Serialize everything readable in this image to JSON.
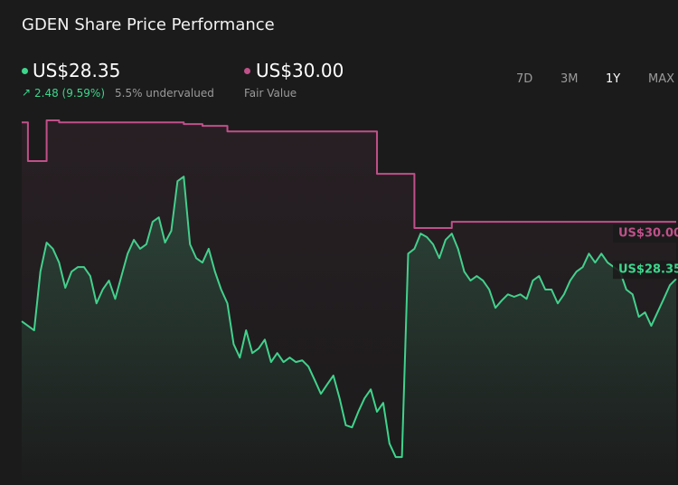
{
  "header": {
    "title": "GDEN Share Price Performance",
    "price": "US$28.35",
    "change": "2.48 (9.59%)",
    "valuation": "5.5% undervalued",
    "fair_value": "US$30.00",
    "fair_value_label": "Fair Value"
  },
  "ranges": [
    "7D",
    "3M",
    "1Y",
    "MAX"
  ],
  "active_range": 2,
  "chart_data": {
    "type": "line",
    "ylim": [
      22.38,
      33.28
    ],
    "grid": false,
    "series": [
      {
        "color": "#3dd68c",
        "values": [
          27.12,
          26.99,
          26.86,
          28.56,
          29.4,
          29.22,
          28.82,
          28.09,
          28.56,
          28.69,
          28.69,
          28.43,
          27.64,
          28.04,
          28.3,
          27.77,
          28.43,
          29.08,
          29.48,
          29.22,
          29.35,
          30.0,
          30.13,
          29.4,
          29.74,
          31.18,
          31.31,
          29.35,
          28.95,
          28.82,
          29.22,
          28.56,
          28.04,
          27.64,
          26.46,
          26.07,
          26.86,
          26.2,
          26.33,
          26.59,
          25.94,
          26.2,
          25.94,
          26.07,
          25.94,
          25.99,
          25.81,
          25.42,
          25.02,
          25.29,
          25.55,
          24.89,
          24.11,
          24.05,
          24.5,
          24.89,
          25.15,
          24.5,
          24.76,
          23.58,
          23.19,
          23.19,
          29.08,
          29.22,
          29.66,
          29.56,
          29.35,
          28.95,
          29.48,
          29.66,
          29.22,
          28.56,
          28.3,
          28.43,
          28.3,
          28.04,
          27.51,
          27.72,
          27.9,
          27.83,
          27.9,
          27.77,
          28.3,
          28.43,
          28.04,
          28.04,
          27.64,
          27.9,
          28.3,
          28.56,
          28.69,
          29.08,
          28.82,
          29.08,
          28.82,
          28.69,
          28.56,
          28.04,
          27.9,
          27.25,
          27.38,
          26.99,
          27.38,
          27.77,
          28.17,
          28.35
        ]
      },
      {
        "name": "Fair Value",
        "color": "#c0508a",
        "values": [
          32.88,
          31.76,
          31.76,
          31.76,
          32.94,
          32.94,
          32.88,
          32.88,
          32.88,
          32.88,
          32.88,
          32.88,
          32.88,
          32.88,
          32.88,
          32.88,
          32.88,
          32.88,
          32.88,
          32.88,
          32.88,
          32.88,
          32.88,
          32.88,
          32.88,
          32.88,
          32.83,
          32.83,
          32.83,
          32.78,
          32.78,
          32.78,
          32.78,
          32.62,
          32.62,
          32.62,
          32.62,
          32.62,
          32.62,
          32.62,
          32.62,
          32.62,
          32.62,
          32.62,
          32.62,
          32.62,
          32.62,
          32.62,
          32.62,
          32.62,
          32.62,
          32.62,
          32.62,
          32.62,
          32.62,
          32.62,
          32.62,
          31.39,
          31.39,
          31.39,
          31.39,
          31.39,
          31.39,
          29.82,
          29.82,
          29.82,
          29.82,
          29.82,
          29.82,
          30.0,
          30.0,
          30.0,
          30.0,
          30.0,
          30.0,
          30.0,
          30.0,
          30.0,
          30.0,
          30.0,
          30.0,
          30.0,
          30.0,
          30.0,
          30.0,
          30.0,
          30.0,
          30.0,
          30.0,
          30.0,
          30.0,
          30.0,
          30.0,
          30.0,
          30.0,
          30.0,
          30.0,
          30.0,
          30.0,
          30.0,
          30.0,
          30.0,
          30.0,
          30.0,
          30.0,
          30.0
        ]
      }
    ]
  }
}
